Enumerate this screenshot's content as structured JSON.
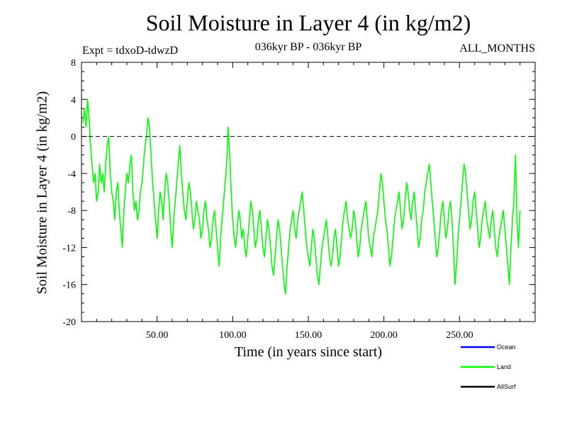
{
  "chart_data": {
    "type": "line",
    "title": "Soil Moisture in Layer 4 (in kg/m2)",
    "subtitle": "036kyr BP - 036kyr BP",
    "experiment": "Expt = tdxoD-tdwzD",
    "period": "ALL_MONTHS",
    "xlabel": "Time (in years since start)",
    "ylabel": "Soil Moisture in Layer 4 (in kg/m2)",
    "xlim": [
      0,
      300
    ],
    "ylim": [
      -20,
      8
    ],
    "x_ticks": [
      50,
      100,
      150,
      200,
      250
    ],
    "x_tick_labels": [
      "50.00",
      "100.00",
      "150.00",
      "200.00",
      "250.00"
    ],
    "y_ticks": [
      8,
      4,
      0,
      -4,
      -8,
      -12,
      -16,
      -20
    ],
    "y_tick_labels": [
      "8",
      "4",
      "0",
      "-4",
      "-8",
      "-12",
      "-16",
      "-20"
    ],
    "reference_line": {
      "y": 0,
      "style": "dashed"
    },
    "grid": false,
    "legend_position": "bottom-right",
    "series": [
      {
        "name": "Ocean",
        "color": "#0000ff",
        "visible_in_plot": false,
        "values": []
      },
      {
        "name": "Land",
        "color": "#00ff00",
        "x_start": 1,
        "x_step": 1,
        "values": [
          1.5,
          3,
          1,
          4,
          2,
          -1,
          -3,
          -5,
          -4,
          -7,
          -6,
          -3,
          -5,
          -4,
          -6,
          -3,
          -1,
          0,
          -4,
          -6,
          -7,
          -9,
          -6,
          -5,
          -8,
          -10,
          -12,
          -8,
          -6,
          -4,
          -5,
          -3,
          -2,
          -6,
          -8,
          -7,
          -9,
          -8,
          -6,
          -5,
          -3,
          -1,
          0,
          2,
          1,
          -2,
          -5,
          -7,
          -9,
          -11,
          -8,
          -6,
          -7,
          -9,
          -6,
          -4,
          -5,
          -7,
          -10,
          -12,
          -9,
          -7,
          -5,
          -3,
          -1,
          -4,
          -6,
          -8,
          -9,
          -7,
          -5,
          -6,
          -8,
          -10,
          -9,
          -7,
          -8,
          -9,
          -11,
          -10,
          -8,
          -7,
          -9,
          -10,
          -12,
          -11,
          -9,
          -8,
          -10,
          -12,
          -14,
          -11,
          -9,
          -7,
          -5,
          -3,
          1,
          -2,
          -6,
          -9,
          -11,
          -12,
          -10,
          -8,
          -9,
          -11,
          -10,
          -12,
          -13,
          -11,
          -9,
          -7,
          -8,
          -10,
          -12,
          -11,
          -9,
          -8,
          -10,
          -12,
          -13,
          -11,
          -9,
          -10,
          -12,
          -14,
          -15,
          -13,
          -11,
          -9,
          -10,
          -12,
          -14,
          -16,
          -17,
          -14,
          -12,
          -10,
          -9,
          -8,
          -10,
          -11,
          -9,
          -8,
          -7,
          -6,
          -8,
          -10,
          -12,
          -13,
          -14,
          -12,
          -10,
          -11,
          -13,
          -15,
          -16,
          -14,
          -12,
          -11,
          -10,
          -9,
          -11,
          -13,
          -14,
          -13,
          -11,
          -10,
          -12,
          -14,
          -13,
          -11,
          -9,
          -8,
          -7,
          -9,
          -10,
          -11,
          -10,
          -8,
          -9,
          -11,
          -13,
          -12,
          -10,
          -9,
          -8,
          -7,
          -9,
          -11,
          -12,
          -13,
          -11,
          -10,
          -9,
          -8,
          -6,
          -4,
          -5,
          -7,
          -9,
          -10,
          -12,
          -14,
          -13,
          -11,
          -9,
          -8,
          -7,
          -6,
          -8,
          -10,
          -9,
          -7,
          -5,
          -6,
          -8,
          -9,
          -7,
          -6,
          -8,
          -10,
          -12,
          -11,
          -9,
          -8,
          -6,
          -5,
          -4,
          -3,
          -5,
          -7,
          -9,
          -11,
          -13,
          -12,
          -10,
          -8,
          -7,
          -9,
          -11,
          -10,
          -8,
          -7,
          -9,
          -12,
          -16,
          -14,
          -11,
          -9,
          -7,
          -5,
          -3,
          -4,
          -6,
          -8,
          -10,
          -9,
          -7,
          -6,
          -8,
          -10,
          -12,
          -11,
          -9,
          -8,
          -7,
          -9,
          -10,
          -11,
          -9,
          -8,
          -10,
          -12,
          -13,
          -11,
          -10,
          -9,
          -8,
          -10,
          -12,
          -14,
          -16,
          -12,
          -9,
          -7,
          -2,
          -9,
          -12,
          -8
        ]
      },
      {
        "name": "AllSurf",
        "color": "#000000",
        "visible_in_plot": false,
        "values": []
      }
    ]
  }
}
